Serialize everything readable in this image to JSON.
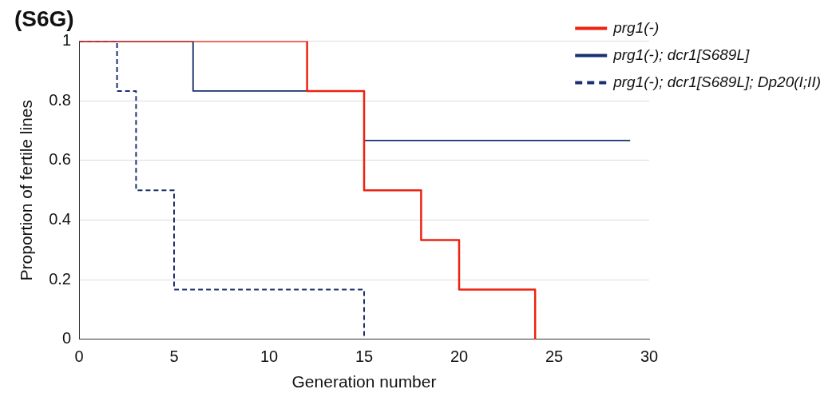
{
  "chart_data": {
    "type": "step",
    "title": "(S6G)",
    "xlabel": "Generation number",
    "ylabel": "Proportion of fertile lines",
    "series": [
      {
        "name": "prg1(-)",
        "color": "#ee2211",
        "x": [
          0,
          12,
          15,
          18,
          20,
          24
        ],
        "values": [
          1,
          0.833,
          0.5,
          0.333,
          0.167,
          0
        ],
        "line_style": "solid"
      },
      {
        "name": "prg1(-); dcr1[S689L]",
        "color": "#1a2f6e",
        "x": [
          0,
          6,
          15,
          29
        ],
        "values": [
          1,
          0.833,
          0.667,
          0.667
        ],
        "line_style": "solid"
      },
      {
        "name": "prg1(-); dcr1[S689L]; Dp20(I;II)",
        "color": "#1a2f6e",
        "x": [
          0,
          2,
          3,
          5,
          15
        ],
        "values": [
          1,
          0.833,
          0.5,
          0.167,
          0
        ],
        "line_style": "dashed"
      }
    ],
    "xlim": [
      0,
      30
    ],
    "xticks": [
      0,
      5,
      10,
      15,
      20,
      25,
      30
    ],
    "ylim": [
      0,
      1
    ],
    "yticks": [
      0,
      0.2,
      0.4,
      0.6,
      0.8,
      1
    ],
    "grid": "y",
    "legend": "top right",
    "marker": "none"
  }
}
